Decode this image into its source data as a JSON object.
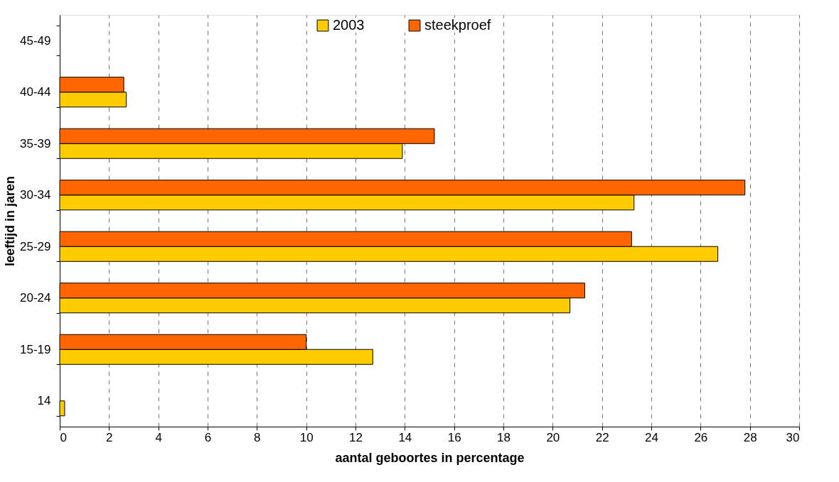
{
  "chart_data": {
    "type": "bar",
    "orientation": "horizontal",
    "xlabel": "aantal geboortes in percentage",
    "ylabel": "leeftijd in jaren",
    "categories": [
      "45-49",
      "40-44",
      "35-39",
      "30-34",
      "25-29",
      "20-24",
      "15-19",
      "14"
    ],
    "series": [
      {
        "name": "2003",
        "color": "#ffcc00",
        "values": [
          null,
          2.7,
          13.9,
          23.3,
          26.7,
          20.7,
          12.7,
          0.2
        ]
      },
      {
        "name": "steekproef",
        "color": "#ff6600",
        "values": [
          null,
          2.6,
          15.2,
          27.8,
          23.2,
          21.3,
          10.0,
          null
        ]
      }
    ],
    "xlim": [
      0,
      30
    ],
    "xticks": [
      0,
      2,
      4,
      6,
      8,
      10,
      12,
      14,
      16,
      18,
      20,
      22,
      24,
      26,
      28,
      30
    ],
    "grid": "x",
    "legend": "top"
  }
}
